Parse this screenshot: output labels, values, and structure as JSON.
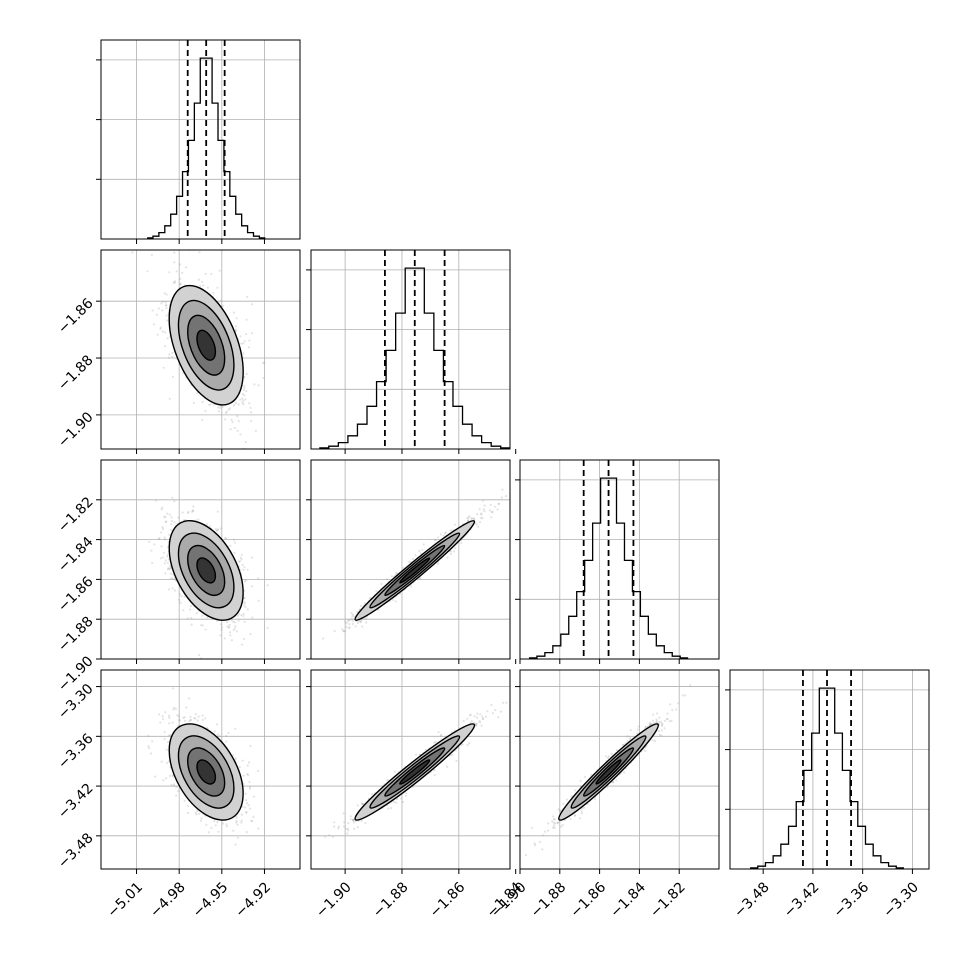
{
  "chart_data": {
    "type": "corner",
    "title": "",
    "parameters": [
      {
        "key": "p0",
        "label": "",
        "range": [
          -5.035,
          -4.895
        ],
        "ticks": [
          -5.01,
          -4.98,
          -4.95,
          -4.92
        ],
        "tick_labels": [
          "−5.01",
          "−4.98",
          "−4.95",
          "−4.92"
        ],
        "quantiles": [
          -4.974,
          -4.961,
          -4.948
        ],
        "mean": -4.961,
        "sd": 0.013
      },
      {
        "key": "p1",
        "label": "",
        "range": [
          -1.912,
          -1.842
        ],
        "ticks": [
          -1.9,
          -1.88,
          -1.86,
          -1.84
        ],
        "tick_labels": [
          "−1.90",
          "−1.88",
          "−1.86",
          "−1.84"
        ],
        "quantiles": [
          -1.886,
          -1.8755,
          -1.865
        ],
        "mean": -1.8755,
        "sd": 0.0105
      },
      {
        "key": "p2",
        "label": "",
        "range": [
          -1.9,
          -1.8
        ],
        "ticks": [
          -1.9,
          -1.88,
          -1.86,
          -1.84,
          -1.82
        ],
        "tick_labels": [
          "−1.90",
          "−1.88",
          "−1.86",
          "−1.84",
          "−1.82"
        ],
        "quantiles": [
          -1.868,
          -1.8555,
          -1.843
        ],
        "mean": -1.8555,
        "sd": 0.0125
      },
      {
        "key": "p3",
        "label": "",
        "range": [
          -3.52,
          -3.28
        ],
        "ticks": [
          -3.48,
          -3.42,
          -3.36,
          -3.3
        ],
        "tick_labels": [
          "−3.48",
          "−3.42",
          "−3.36",
          "−3.30"
        ],
        "quantiles": [
          -3.432,
          -3.403,
          -3.374
        ],
        "mean": -3.403,
        "sd": 0.029
      }
    ],
    "correlations": [
      {
        "pair": [
          "p0",
          "p1"
        ],
        "rho": -0.45
      },
      {
        "pair": [
          "p0",
          "p2"
        ],
        "rho": -0.45
      },
      {
        "pair": [
          "p0",
          "p3"
        ],
        "rho": -0.45
      },
      {
        "pair": [
          "p1",
          "p2"
        ],
        "rho": 0.98
      },
      {
        "pair": [
          "p1",
          "p3"
        ],
        "rho": 0.97
      },
      {
        "pair": [
          "p2",
          "p3"
        ],
        "rho": 0.97
      }
    ],
    "histogram_bins": 20,
    "quantile_line_style": "dashed",
    "contour_levels_sigma": [
      0.5,
      1.0,
      1.5,
      2.0
    ],
    "grid": true,
    "colors": {
      "line": "#000000",
      "grid": "#b0b0b0",
      "points": "#9a9a9a",
      "frame": "#000000"
    }
  }
}
